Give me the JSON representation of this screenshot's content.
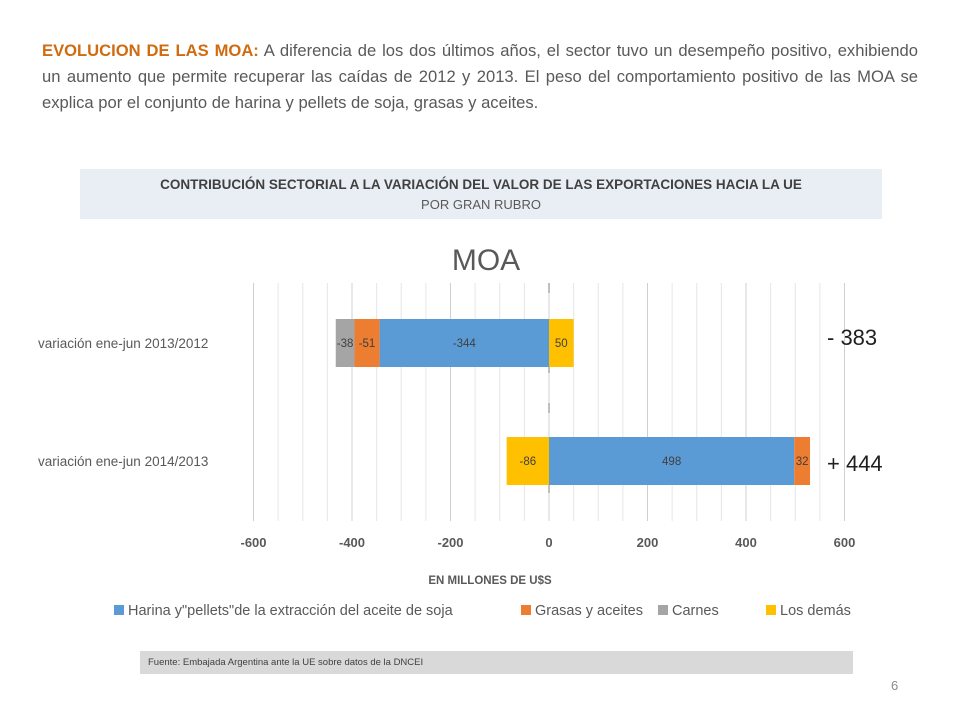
{
  "intro": {
    "lead": "EVOLUCION DE LAS MOA:",
    "body": " A diferencia de los dos últimos años, el sector tuvo un desempeño positivo, exhibiendo un aumento que permite recuperar las caídas de 2012  y 2013. El peso del comportamiento positivo de las MOA se explica por el conjunto de harina y pellets de soja, grasas y aceites."
  },
  "header": {
    "title": "CONTRIBUCIÓN SECTORIAL A LA VARIACIÓN DEL VALOR DE LAS EXPORTACIONES HACIA LA UE",
    "subtitle": "POR GRAN RUBRO"
  },
  "chart_data": {
    "type": "bar",
    "orientation": "horizontal",
    "stacked": true,
    "title": "MOA",
    "xlabel": "EN MILLONES DE U$S",
    "xlim": [
      -600,
      600
    ],
    "xticks": [
      "-600",
      "-400",
      "-200",
      "0",
      "200",
      "400",
      "600"
    ],
    "grid": true,
    "legend_position": "bottom",
    "categories": [
      "variación ene-jun 2013/2012",
      "variación ene-jun 2014/2013"
    ],
    "series": [
      {
        "name": "Harina y\"pellets\"de la extracción del aceite de soja",
        "color": "#5b9bd5",
        "values": [
          -344,
          498
        ],
        "labels": [
          "-344",
          "498"
        ]
      },
      {
        "name": "Grasas y aceites",
        "color": "#ed7d31",
        "values": [
          -51,
          32
        ],
        "labels": [
          "-51",
          "32"
        ]
      },
      {
        "name": "Carnes",
        "color": "#a5a5a5",
        "values": [
          -38,
          0
        ],
        "labels": [
          "-38",
          ""
        ]
      },
      {
        "name": "Los demás",
        "color": "#ffc000",
        "values": [
          50,
          -86
        ],
        "labels": [
          "50",
          "-86"
        ]
      }
    ],
    "annotations": [
      "- 383",
      "+ 444"
    ]
  },
  "footer": {
    "source": "Fuente: Embajada  Argentina ante la UE sobre datos de la DNCEI",
    "page_number": "6"
  }
}
